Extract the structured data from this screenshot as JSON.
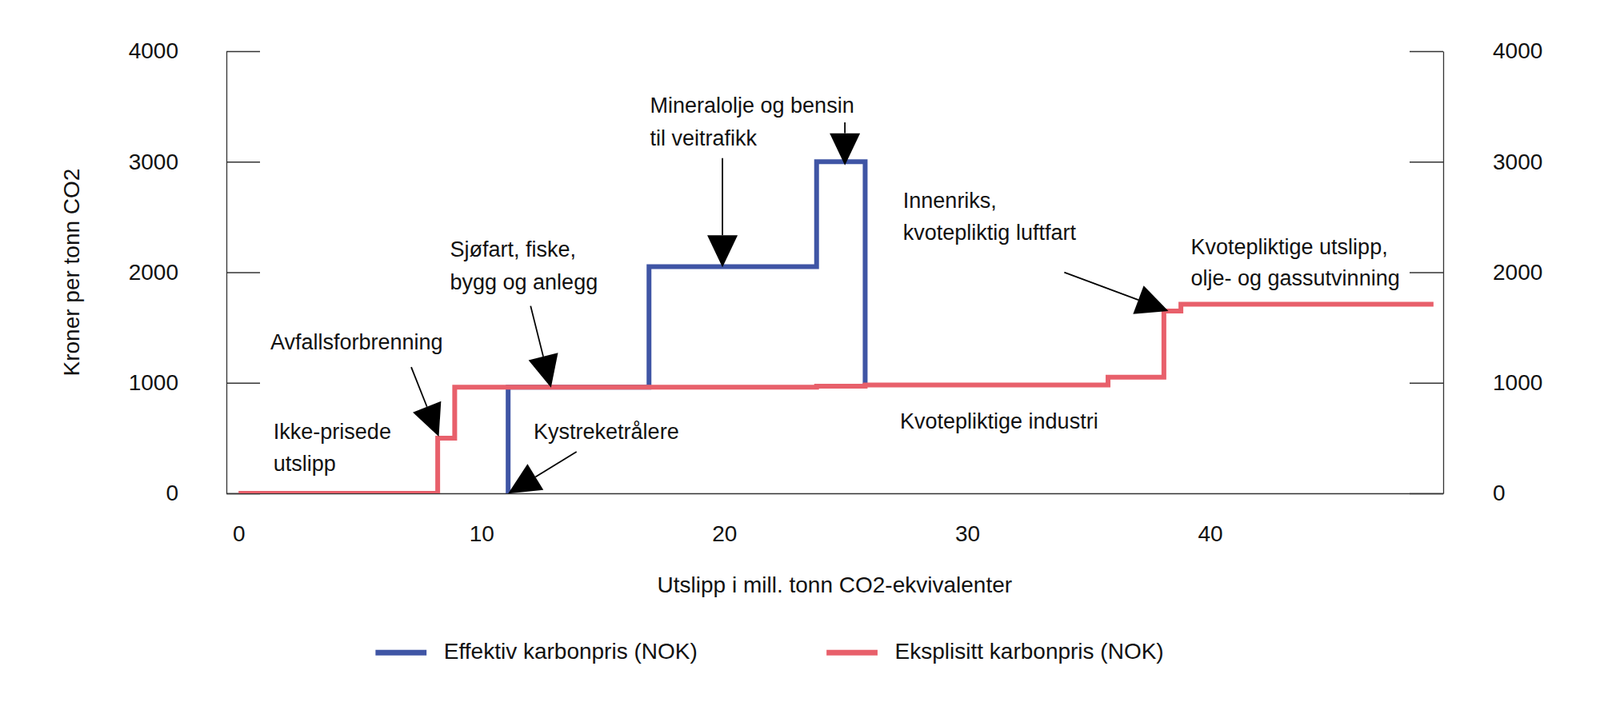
{
  "chart_data": {
    "type": "line",
    "x_label": "Utslipp i mill. tonn CO2-ekvivalenter",
    "y_label": "Kroner per tonn CO2",
    "xlim": [
      -0.5,
      49.6
    ],
    "xticks": [
      0,
      10,
      20,
      30,
      40
    ],
    "ylim": [
      0,
      4000
    ],
    "yticks": [
      0,
      1000,
      2000,
      3000,
      4000
    ],
    "y2lim": [
      0,
      4000
    ],
    "y2ticks": [
      0,
      1000,
      2000,
      3000,
      4000
    ],
    "grid": false,
    "legend": "bottom",
    "series": [
      {
        "name": "Effektiv karbonpris (NOK)",
        "color": "#3f55a5",
        "line_style": "step",
        "x": [
          11.1,
          11.1,
          16.9,
          23.8,
          25.8
        ],
        "values": [
          0,
          960,
          2050,
          3000,
          980
        ]
      },
      {
        "name": "Eksplisitt karbonpris (NOK)",
        "color": "#e8606b",
        "line_style": "step",
        "x": [
          0,
          8.2,
          8.9,
          23.8,
          25.8,
          35.8,
          38.1,
          38.8,
          49.2
        ],
        "values": [
          0,
          500,
          960,
          970,
          980,
          1050,
          1650,
          1710,
          1710
        ]
      }
    ],
    "annotations": [
      [
        "Ikke-prisede",
        "utslipp"
      ],
      [
        "Avfallsforbrenning"
      ],
      [
        "Sjøfart, fiske,",
        "bygg og anlegg"
      ],
      [
        "Kystreketrålere"
      ],
      [
        "Mineralolje og bensin",
        "til veitrafikk"
      ],
      [
        "Innenriks,",
        "kvotepliktig luftfart"
      ],
      [
        "Kvotepliktige utslipp,",
        "olje- og gassutvinning"
      ],
      [
        "Kvotepliktige industri"
      ]
    ]
  }
}
